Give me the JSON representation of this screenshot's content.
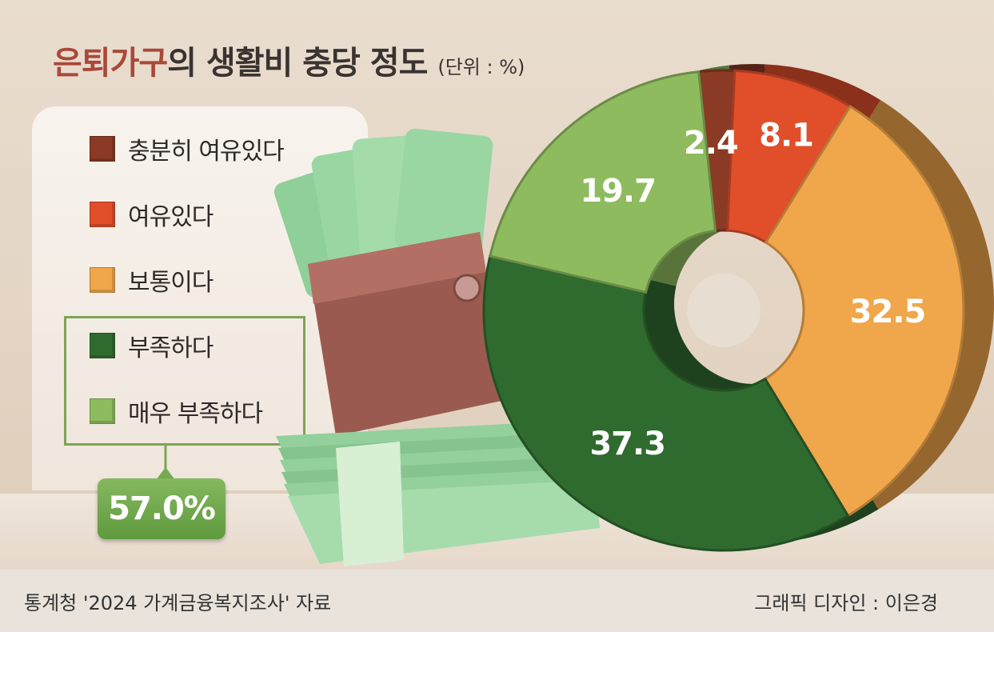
{
  "title": {
    "highlight": "은퇴가구",
    "main": "의 생활비 충당 정도",
    "unit": "(단위 : %)"
  },
  "legend": {
    "items": [
      {
        "label": "충분히 여유있다",
        "color": "#8a3a25"
      },
      {
        "label": "여유있다",
        "color": "#e04e2a"
      },
      {
        "label": "보통이다",
        "color": "#f0a64a"
      },
      {
        "label": "부족하다",
        "color": "#2f6b2e"
      },
      {
        "label": "매우 부족하다",
        "color": "#8ebb5e"
      }
    ],
    "group_total": "57.0%"
  },
  "chart_data": {
    "type": "pie",
    "categories": [
      "충분히 여유있다",
      "여유있다",
      "보통이다",
      "부족하다",
      "매우 부족하다"
    ],
    "values": [
      2.4,
      8.1,
      32.5,
      37.3,
      19.7
    ],
    "labels": [
      "2.4",
      "8.1",
      "32.5",
      "37.3",
      "19.7"
    ],
    "colors": [
      "#8a3a25",
      "#e04e2a",
      "#f0a64a",
      "#2f6b2e",
      "#8ebb5e"
    ],
    "donut": true,
    "legend_position": "left",
    "title": "은퇴가구의 생활비 충당 정도",
    "unit": "%"
  },
  "footer": {
    "source": "통계청 '2024 가계금융복지조사' 자료",
    "credit": "그래픽 디자인 : 이은경"
  }
}
